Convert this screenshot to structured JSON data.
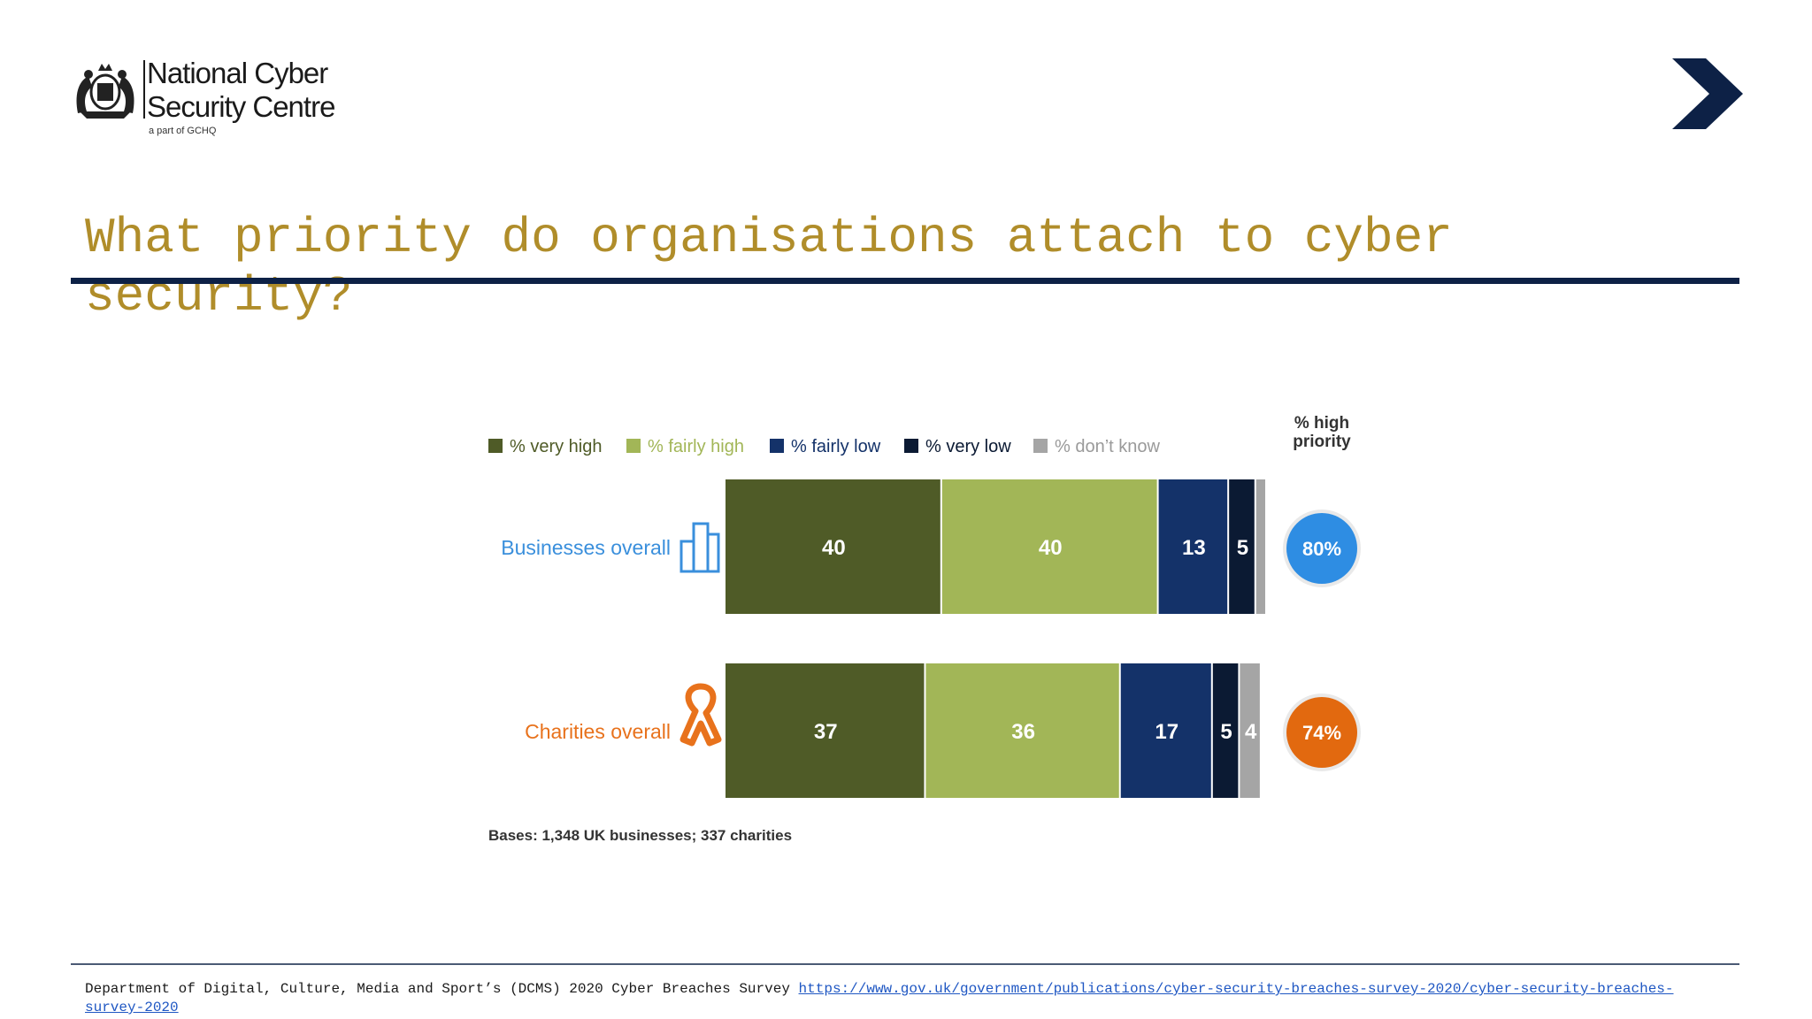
{
  "logo": {
    "name_line1": "National Cyber",
    "name_line2": "Security Centre",
    "sub": "a part of GCHQ",
    "crest_icon": "royal-crest-icon"
  },
  "nav": {
    "next_icon": "chevron-right-icon",
    "color": "#0d2146"
  },
  "slide": {
    "title": "What priority do organisations attach to cyber security?"
  },
  "chart_data": {
    "type": "bar",
    "orientation": "horizontal",
    "stacked": true,
    "categories": [
      "Businesses overall",
      "Charities overall"
    ],
    "category_icons": [
      "office-building-icon",
      "awareness-ribbon-icon"
    ],
    "category_colors": [
      "#3a8fdc",
      "#e8721c"
    ],
    "series": [
      {
        "name": "% very high",
        "values": [
          40,
          37
        ],
        "color": "#4f5b27"
      },
      {
        "name": "% fairly high",
        "values": [
          40,
          36
        ],
        "color": "#a2b657"
      },
      {
        "name": "% fairly low",
        "values": [
          13,
          17
        ],
        "color": "#143269"
      },
      {
        "name": "% very low",
        "values": [
          5,
          5
        ],
        "color": "#0b1a33"
      },
      {
        "name": "% don’t know",
        "values": [
          2,
          4
        ],
        "color": "#a5a5a5"
      }
    ],
    "high_priority_label": "% high\npriority",
    "high_priority": [
      "80%",
      "74%"
    ],
    "high_priority_colors": [
      "#2e8de3",
      "#e2690f"
    ],
    "note": "Bases: 1,348 UK businesses; 337 charities",
    "legend_position": "top",
    "xlim": [
      0,
      100
    ]
  },
  "footer": {
    "text": "Department of Digital, Culture, Media and Sport’s (DCMS) 2020 Cyber Breaches Survey ",
    "link": "https://www.gov.uk/government/publications/cyber-security-breaches-survey-2020/cyber-security-breaches-survey-2020"
  }
}
